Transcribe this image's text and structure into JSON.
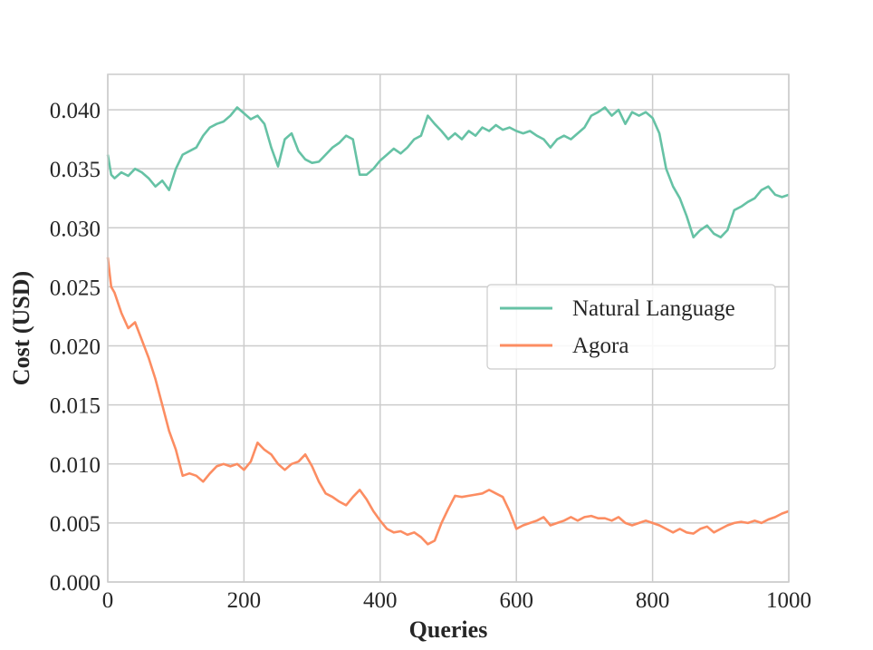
{
  "chart_data": {
    "type": "line",
    "xlabel": "Queries",
    "ylabel": "Cost (USD)",
    "xlim": [
      0,
      1000
    ],
    "ylim": [
      0,
      0.043
    ],
    "xticks": [
      0,
      200,
      400,
      600,
      800,
      1000
    ],
    "xtick_labels": [
      "0",
      "200",
      "400",
      "600",
      "800",
      "1000"
    ],
    "yticks": [
      0,
      0.005,
      0.01,
      0.015,
      0.02,
      0.025,
      0.03,
      0.035,
      0.04
    ],
    "ytick_labels": [
      "0.000",
      "0.005",
      "0.010",
      "0.015",
      "0.020",
      "0.025",
      "0.030",
      "0.035",
      "0.040"
    ],
    "grid": true,
    "legend_position": "center-right",
    "series": [
      {
        "name": "Natural Language",
        "color": "#66c2a5",
        "x": [
          0,
          5,
          10,
          20,
          30,
          40,
          50,
          60,
          70,
          80,
          90,
          100,
          110,
          120,
          130,
          140,
          150,
          160,
          170,
          180,
          190,
          200,
          210,
          220,
          230,
          240,
          250,
          260,
          270,
          280,
          290,
          300,
          310,
          320,
          330,
          340,
          350,
          360,
          370,
          380,
          390,
          400,
          410,
          420,
          430,
          440,
          450,
          460,
          470,
          480,
          490,
          500,
          510,
          520,
          530,
          540,
          550,
          560,
          570,
          580,
          590,
          600,
          610,
          620,
          630,
          640,
          650,
          660,
          670,
          680,
          690,
          700,
          710,
          720,
          730,
          740,
          750,
          760,
          770,
          780,
          790,
          800,
          810,
          820,
          830,
          840,
          850,
          860,
          870,
          880,
          890,
          900,
          910,
          920,
          930,
          940,
          950,
          960,
          970,
          980,
          990,
          1000
        ],
        "values": [
          0.0362,
          0.0345,
          0.0342,
          0.0347,
          0.0344,
          0.035,
          0.0347,
          0.0342,
          0.0335,
          0.034,
          0.0332,
          0.035,
          0.0362,
          0.0365,
          0.0368,
          0.0378,
          0.0385,
          0.0388,
          0.039,
          0.0395,
          0.0402,
          0.0397,
          0.0392,
          0.0395,
          0.0388,
          0.0368,
          0.0352,
          0.0375,
          0.038,
          0.0365,
          0.0358,
          0.0355,
          0.0356,
          0.0362,
          0.0368,
          0.0372,
          0.0378,
          0.0375,
          0.0345,
          0.0345,
          0.035,
          0.0357,
          0.0362,
          0.0367,
          0.0363,
          0.0368,
          0.0375,
          0.0378,
          0.0395,
          0.0388,
          0.0382,
          0.0375,
          0.038,
          0.0375,
          0.0382,
          0.0378,
          0.0385,
          0.0382,
          0.0387,
          0.0383,
          0.0385,
          0.0382,
          0.038,
          0.0382,
          0.0378,
          0.0375,
          0.0368,
          0.0375,
          0.0378,
          0.0375,
          0.038,
          0.0385,
          0.0395,
          0.0398,
          0.0402,
          0.0395,
          0.04,
          0.0388,
          0.0398,
          0.0395,
          0.0398,
          0.0393,
          0.038,
          0.035,
          0.0335,
          0.0325,
          0.031,
          0.0292,
          0.0298,
          0.0302,
          0.0295,
          0.0292,
          0.0298,
          0.0315,
          0.0318,
          0.0322,
          0.0325,
          0.0332,
          0.0335,
          0.0328,
          0.0326,
          0.0328
        ]
      },
      {
        "name": "Agora",
        "color": "#fc8d62",
        "x": [
          0,
          5,
          10,
          20,
          30,
          40,
          50,
          60,
          70,
          80,
          90,
          100,
          110,
          120,
          130,
          140,
          150,
          160,
          170,
          180,
          190,
          200,
          210,
          220,
          230,
          240,
          250,
          260,
          270,
          280,
          290,
          300,
          310,
          320,
          330,
          340,
          350,
          360,
          370,
          380,
          390,
          400,
          410,
          420,
          430,
          440,
          450,
          460,
          470,
          480,
          490,
          500,
          510,
          520,
          530,
          540,
          550,
          560,
          570,
          580,
          590,
          600,
          610,
          620,
          630,
          640,
          650,
          660,
          670,
          680,
          690,
          700,
          710,
          720,
          730,
          740,
          750,
          760,
          770,
          780,
          790,
          800,
          810,
          820,
          830,
          840,
          850,
          860,
          870,
          880,
          890,
          900,
          910,
          920,
          930,
          940,
          950,
          960,
          970,
          980,
          990,
          1000
        ],
        "values": [
          0.0275,
          0.025,
          0.0245,
          0.0228,
          0.0215,
          0.022,
          0.0205,
          0.019,
          0.0172,
          0.015,
          0.0128,
          0.0112,
          0.009,
          0.0092,
          0.009,
          0.0085,
          0.0092,
          0.0098,
          0.01,
          0.0098,
          0.01,
          0.0095,
          0.0102,
          0.0118,
          0.0112,
          0.0108,
          0.01,
          0.0095,
          0.01,
          0.0102,
          0.0108,
          0.0098,
          0.0085,
          0.0075,
          0.0072,
          0.0068,
          0.0065,
          0.0072,
          0.0078,
          0.007,
          0.006,
          0.0052,
          0.0045,
          0.0042,
          0.0043,
          0.004,
          0.0042,
          0.0038,
          0.0032,
          0.0035,
          0.005,
          0.0062,
          0.0073,
          0.0072,
          0.0073,
          0.0074,
          0.0075,
          0.0078,
          0.0075,
          0.0072,
          0.006,
          0.0045,
          0.0048,
          0.005,
          0.0052,
          0.0055,
          0.0048,
          0.005,
          0.0052,
          0.0055,
          0.0052,
          0.0055,
          0.0056,
          0.0054,
          0.0054,
          0.0052,
          0.0055,
          0.005,
          0.0048,
          0.005,
          0.0052,
          0.005,
          0.0048,
          0.0045,
          0.0042,
          0.0045,
          0.0042,
          0.0041,
          0.0045,
          0.0047,
          0.0042,
          0.0045,
          0.0048,
          0.005,
          0.0051,
          0.005,
          0.0052,
          0.005,
          0.0053,
          0.0055,
          0.0058,
          0.006
        ]
      }
    ]
  }
}
